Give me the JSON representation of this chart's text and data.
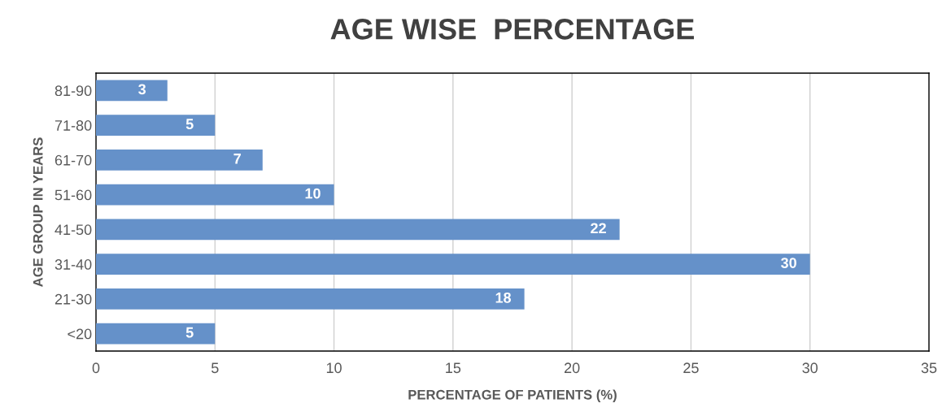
{
  "chart_data": {
    "type": "bar",
    "orientation": "horizontal",
    "title": "AGE WISE  PERCENTAGE",
    "xlabel": "PERCENTAGE OF PATIENTS (%)",
    "ylabel": "AGE GROUP IN YEARS",
    "categories": [
      "81-90",
      "71-80",
      "61-70",
      "51-60",
      "41-50",
      "31-40",
      "21-30",
      "<20"
    ],
    "values": [
      3,
      5,
      7,
      10,
      22,
      30,
      18,
      5
    ],
    "color": "#6591c9",
    "xlim": [
      0,
      35
    ],
    "xticks": [
      0,
      5,
      10,
      15,
      20,
      25,
      30,
      35
    ],
    "grid": "x",
    "data_labels": true
  }
}
